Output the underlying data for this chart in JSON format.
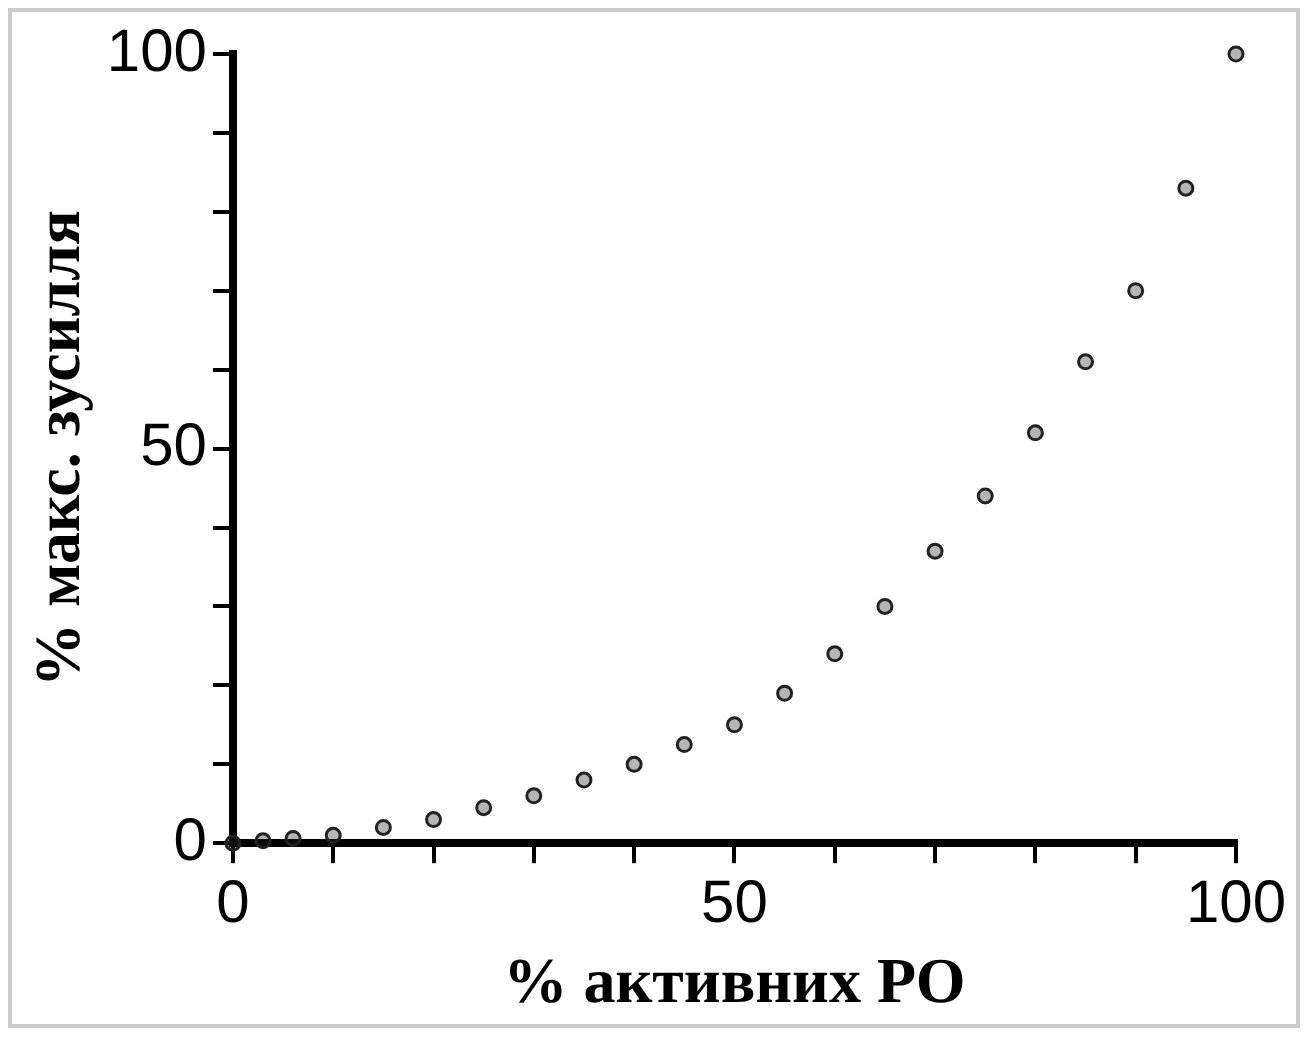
{
  "chart_data": {
    "type": "scatter",
    "xlabel": "% активних РО",
    "ylabel": "% макс. зусилля",
    "marker": "circle",
    "grid": false,
    "legend": false,
    "xlim": [
      0,
      100
    ],
    "ylim": [
      0,
      100
    ],
    "xticks": [
      0,
      {
        "value": 10,
        "label": null
      },
      {
        "value": 20,
        "label": null
      },
      {
        "value": 30,
        "label": null
      },
      {
        "value": 40,
        "label": null
      },
      50,
      {
        "value": 60,
        "label": null
      },
      {
        "value": 70,
        "label": null
      },
      {
        "value": 80,
        "label": null
      },
      {
        "value": 90,
        "label": null
      },
      100
    ],
    "yticks": [
      0,
      {
        "value": 10,
        "label": null
      },
      {
        "value": 20,
        "label": null
      },
      {
        "value": 30,
        "label": null
      },
      {
        "value": 40,
        "label": null
      },
      50,
      {
        "value": 60,
        "label": null
      },
      {
        "value": 70,
        "label": null
      },
      {
        "value": 80,
        "label": null
      },
      {
        "value": 90,
        "label": null
      },
      100
    ],
    "series": [
      {
        "color": "#222222",
        "x": [
          0,
          3,
          6,
          10,
          15,
          20,
          25,
          30,
          35,
          40,
          45,
          50,
          55,
          60,
          65,
          70,
          75,
          80,
          85,
          90,
          95,
          100
        ],
        "values": [
          0,
          0.3,
          0.6,
          1,
          2,
          3,
          4.5,
          6,
          8,
          10,
          12.5,
          15,
          19,
          24,
          30,
          37,
          44,
          52,
          61,
          70,
          83,
          100
        ]
      }
    ]
  }
}
